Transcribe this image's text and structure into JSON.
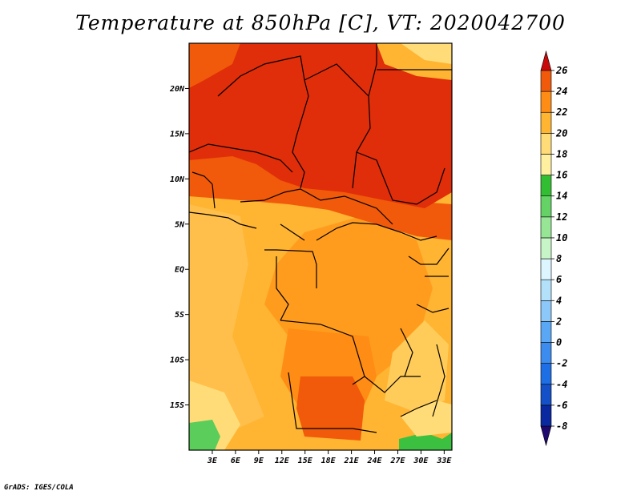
{
  "title": "Temperature at 850hPa [C], VT: 2020042700",
  "credit": "GrADS: IGES/COLA",
  "map": {
    "lon_range": [
      0,
      34
    ],
    "lat_range": [
      -20,
      25
    ],
    "lon_ticks": [
      {
        "value": 3,
        "label": "3E"
      },
      {
        "value": 6,
        "label": "6E"
      },
      {
        "value": 9,
        "label": "9E"
      },
      {
        "value": 12,
        "label": "12E"
      },
      {
        "value": 15,
        "label": "15E"
      },
      {
        "value": 18,
        "label": "18E"
      },
      {
        "value": 21,
        "label": "21E"
      },
      {
        "value": 24,
        "label": "24E"
      },
      {
        "value": 27,
        "label": "27E"
      },
      {
        "value": 30,
        "label": "30E"
      },
      {
        "value": 33,
        "label": "33E"
      }
    ],
    "lat_ticks": [
      {
        "value": 20,
        "label": "20N"
      },
      {
        "value": 15,
        "label": "15N"
      },
      {
        "value": 10,
        "label": "10N"
      },
      {
        "value": 5,
        "label": "5N"
      },
      {
        "value": 0,
        "label": "EQ"
      },
      {
        "value": -5,
        "label": "5S"
      },
      {
        "value": -10,
        "label": "10S"
      },
      {
        "value": -15,
        "label": "15S"
      }
    ]
  },
  "colorbar": {
    "labels": [
      "26",
      "24",
      "22",
      "20",
      "18",
      "16",
      "14",
      "12",
      "10",
      "8",
      "6",
      "4",
      "2",
      "0",
      "-2",
      "-4",
      "-6",
      "-8"
    ],
    "colors": [
      "#1e0a6e",
      "#0a28a0",
      "#1450c8",
      "#1e6ee6",
      "#3c8cf0",
      "#5aa8f5",
      "#8cc8fa",
      "#b4e1fa",
      "#dcf5ff",
      "#c8f5c8",
      "#96e696",
      "#64d264",
      "#32be32",
      "#fff0a0",
      "#ffdc78",
      "#ffb432",
      "#ff8c14",
      "#f05a0a",
      "#e02d0a",
      "#c80a0a"
    ]
  }
}
